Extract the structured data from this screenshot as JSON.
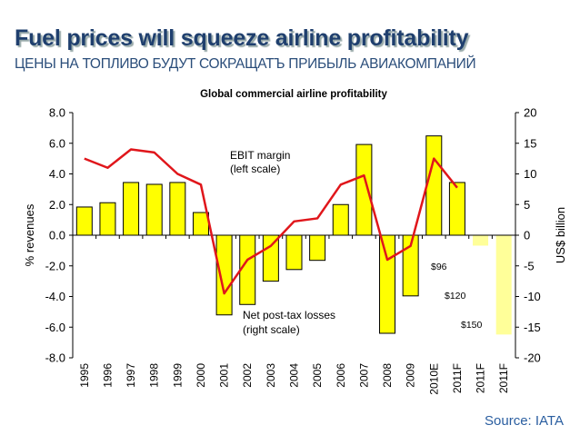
{
  "header": {
    "title": "Fuel prices will squeeze airline profitability",
    "subtitle": "ЦЕНЫ НА ТОПЛИВО БУДУТ СОКРАЩАТЪ ПРИБЫЛЬ АВИАКОМПАНИЙ"
  },
  "source": "Source: IATA",
  "chart_data": {
    "type": "bar",
    "title": "Global commercial airline profitability",
    "categories": [
      "1995",
      "1996",
      "1997",
      "1998",
      "1999",
      "2000",
      "2001",
      "2002",
      "2003",
      "2004",
      "2005",
      "2006",
      "2007",
      "2008",
      "2009",
      "2010E",
      "2011F",
      "2011F",
      "2011F"
    ],
    "ylabel_left": "% revenues",
    "ylabel_right": "US$ billion",
    "ylim_left": [
      -8,
      8
    ],
    "ylim_right": [
      -20,
      20
    ],
    "yticks_left": [
      "8.0",
      "6.0",
      "4.0",
      "2.0",
      "0.0",
      "-2.0",
      "-4.0",
      "-6.0",
      "-8.0"
    ],
    "yticks_right": [
      "20",
      "15",
      "10",
      "5",
      "0",
      "-5",
      "-10",
      "-15",
      "-20"
    ],
    "grid": false,
    "series": [
      {
        "name": "Net post-tax losses (right scale)",
        "type": "bar",
        "axis": "right",
        "color": "#ffff00",
        "values": [
          4.6,
          5.3,
          8.6,
          8.3,
          8.6,
          3.7,
          -13.0,
          -11.3,
          -7.5,
          -5.6,
          -4.1,
          5.0,
          14.8,
          -16.0,
          -9.9,
          16.2,
          8.6,
          -1.7,
          -16.2
        ],
        "faded_color": "#ffff99",
        "faded": [
          false,
          false,
          false,
          false,
          false,
          false,
          false,
          false,
          false,
          false,
          false,
          false,
          false,
          false,
          false,
          false,
          false,
          true,
          true
        ]
      },
      {
        "name": "EBIT margin (left scale)",
        "type": "line",
        "axis": "left",
        "color": "#e0161b",
        "values": [
          5.0,
          4.4,
          5.6,
          5.4,
          4.0,
          3.3,
          -3.8,
          -1.6,
          -0.7,
          0.9,
          1.1,
          3.3,
          3.9,
          -1.6,
          -0.7,
          5.0,
          3.1,
          null,
          null
        ]
      }
    ],
    "annotations": [
      {
        "line1": "EBIT margin",
        "line2": "(left scale)"
      },
      {
        "line1": "Net post-tax losses",
        "line2": "(right scale)"
      },
      {
        "text": "$96"
      },
      {
        "text": "$120"
      },
      {
        "text": "$150"
      }
    ]
  }
}
